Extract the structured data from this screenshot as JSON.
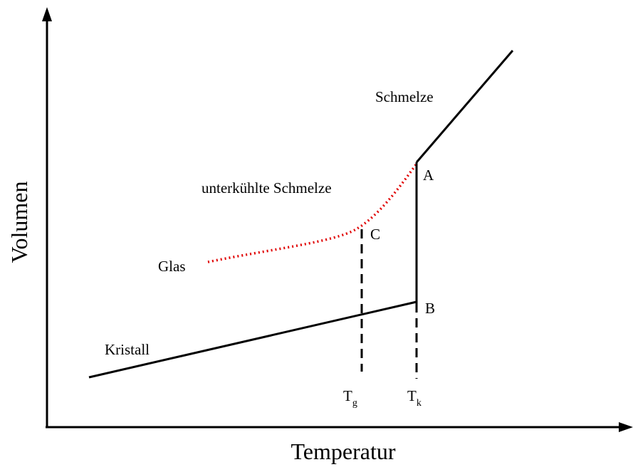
{
  "axes": {
    "x_label": "Temperatur",
    "y_label": "Volumen"
  },
  "curves": {
    "melt": "Schmelze",
    "supercooled": "unterkühlte Schmelze",
    "glass": "Glas",
    "crystal": "Kristall"
  },
  "points": {
    "a": "A",
    "b": "B",
    "c": "C"
  },
  "temperatures": [
    {
      "symbol": "T",
      "subscript": "g"
    },
    {
      "symbol": "T",
      "subscript": "k"
    }
  ]
}
